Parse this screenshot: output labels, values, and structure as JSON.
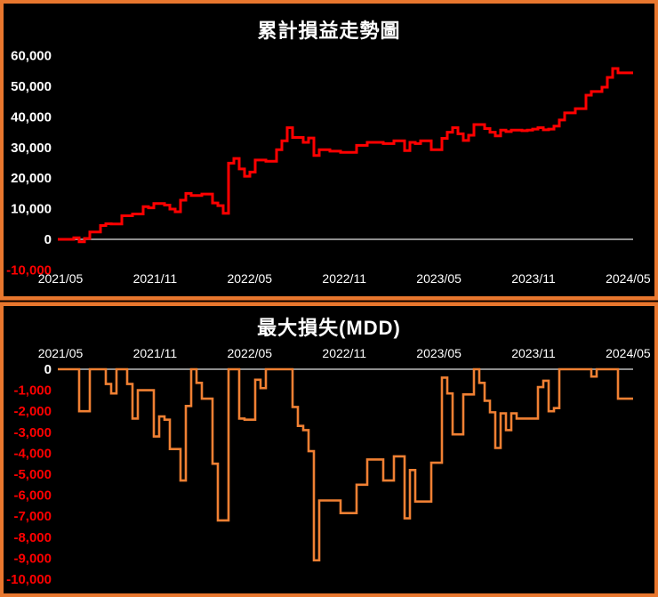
{
  "page": {
    "background": "#000000",
    "panel_border_color": "#E8772E",
    "zero_line_color": "#BEBEBE",
    "tick_color": "#FFFFFF",
    "negative_tick_color": "#FF0000"
  },
  "chart_data": [
    {
      "type": "line",
      "subtype": "step",
      "title": "累計損益走勢圖",
      "line_color": "#FF0000",
      "legend": "none",
      "grid": "off",
      "x_ticks": [
        "2021/05",
        "2021/11",
        "2022/05",
        "2022/11",
        "2023/05",
        "2023/11",
        "2024/05"
      ],
      "y_ticks": [
        60000,
        50000,
        40000,
        30000,
        20000,
        10000,
        0,
        -10000
      ],
      "ylim": [
        -10000,
        60000
      ],
      "values": [
        0,
        0,
        0,
        500,
        -800,
        300,
        2400,
        2400,
        4500,
        5100,
        5000,
        5000,
        7700,
        7700,
        8300,
        8300,
        10700,
        10300,
        11700,
        11700,
        11200,
        9900,
        9000,
        12800,
        15000,
        14300,
        14300,
        14800,
        14800,
        11900,
        11000,
        8500,
        24900,
        26400,
        23000,
        20600,
        22000,
        25900,
        25900,
        25500,
        25500,
        29300,
        32200,
        36500,
        33300,
        33300,
        31700,
        33100,
        27400,
        29300,
        29300,
        28800,
        28800,
        28400,
        28400,
        28400,
        30700,
        30700,
        31700,
        31700,
        31700,
        31300,
        31300,
        32200,
        32200,
        29000,
        31700,
        31300,
        32200,
        32200,
        29300,
        29300,
        33000,
        35000,
        36500,
        34500,
        32300,
        34000,
        37500,
        37500,
        36200,
        35000,
        33800,
        35700,
        35200,
        35700,
        35700,
        35500,
        35700,
        36000,
        36500,
        35800,
        36000,
        37000,
        39000,
        41300,
        41300,
        42700,
        42700,
        47100,
        48300,
        48300,
        49700,
        52900,
        55800,
        54400,
        54400,
        54400
      ]
    },
    {
      "type": "line",
      "subtype": "step",
      "title": "最大損失(MDD)",
      "line_color": "#F08033",
      "legend": "none",
      "grid": "off",
      "x_ticks": [
        "2021/05",
        "2021/11",
        "2022/05",
        "2022/11",
        "2023/05",
        "2023/11",
        "2024/05"
      ],
      "y_ticks": [
        0,
        -1000,
        -2000,
        -3000,
        -4000,
        -5000,
        -6000,
        -7000,
        -8000,
        -9000,
        -10000
      ],
      "ylim": [
        -10000,
        0
      ],
      "values": [
        0,
        0,
        0,
        0,
        -2000,
        -2000,
        0,
        0,
        0,
        -700,
        -1150,
        0,
        0,
        -700,
        -2350,
        -1000,
        -1000,
        -1000,
        -3200,
        -2250,
        -2400,
        -3800,
        -3800,
        -5300,
        -1750,
        0,
        -650,
        -1400,
        -1400,
        -4500,
        -7200,
        -7200,
        0,
        0,
        -2350,
        -2400,
        -2400,
        -500,
        -900,
        0,
        0,
        0,
        0,
        0,
        -1800,
        -2700,
        -2900,
        -3900,
        -9100,
        -6250,
        -6250,
        -6250,
        -6250,
        -6850,
        -6850,
        -6850,
        -5500,
        -5500,
        -4300,
        -4300,
        -4300,
        -5300,
        -5300,
        -4150,
        -4150,
        -7100,
        -4800,
        -6300,
        -6300,
        -6300,
        -4450,
        -4450,
        -400,
        -1150,
        -3100,
        -3100,
        -1200,
        -1200,
        0,
        -650,
        -1500,
        -2050,
        -3750,
        -2100,
        -2900,
        -2100,
        -2350,
        -2350,
        -2350,
        -2350,
        -850,
        -550,
        -2000,
        -1850,
        0,
        0,
        0,
        0,
        0,
        0,
        -350,
        0,
        0,
        0,
        0,
        -1400,
        -1400,
        -1400
      ]
    }
  ]
}
